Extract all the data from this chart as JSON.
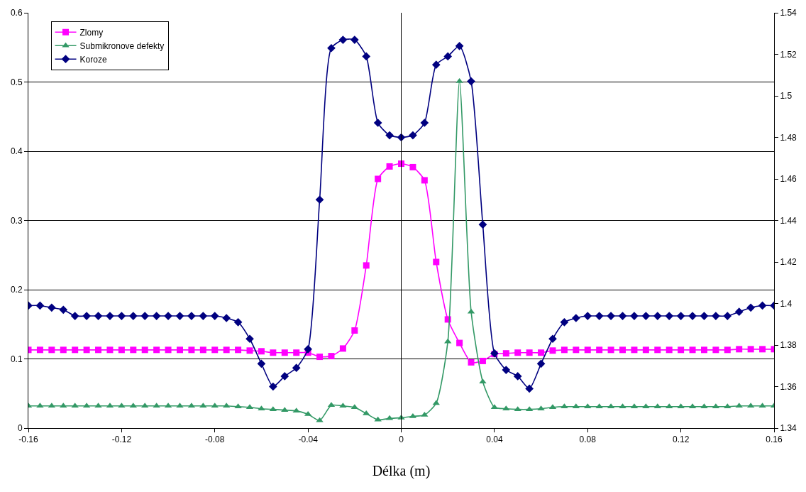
{
  "chart_data": {
    "type": "line",
    "xlabel": "Délka (m)",
    "x": [
      -0.16,
      -0.155,
      -0.15,
      -0.145,
      -0.14,
      -0.135,
      -0.13,
      -0.125,
      -0.12,
      -0.115,
      -0.11,
      -0.105,
      -0.1,
      -0.095,
      -0.09,
      -0.085,
      -0.08,
      -0.075,
      -0.07,
      -0.065,
      -0.06,
      -0.055,
      -0.05,
      -0.045,
      -0.04,
      -0.035,
      -0.03,
      -0.025,
      -0.02,
      -0.015,
      -0.01,
      -0.005,
      0,
      0.005,
      0.01,
      0.015,
      0.02,
      0.025,
      0.03,
      0.035,
      0.04,
      0.045,
      0.05,
      0.055,
      0.06,
      0.065,
      0.07,
      0.075,
      0.08,
      0.085,
      0.09,
      0.095,
      0.1,
      0.105,
      0.11,
      0.115,
      0.12,
      0.125,
      0.13,
      0.135,
      0.14,
      0.145,
      0.15,
      0.155,
      0.16
    ],
    "series": [
      {
        "name": "Zlomy",
        "color": "#ff00ff",
        "marker": "square",
        "values": [
          0.113,
          0.113,
          0.113,
          0.113,
          0.113,
          0.113,
          0.113,
          0.113,
          0.113,
          0.113,
          0.113,
          0.113,
          0.113,
          0.113,
          0.113,
          0.113,
          0.113,
          0.113,
          0.113,
          0.112,
          0.111,
          0.109,
          0.109,
          0.109,
          0.109,
          0.103,
          0.104,
          0.115,
          0.141,
          0.235,
          0.36,
          0.378,
          0.382,
          0.377,
          0.358,
          0.24,
          0.157,
          0.123,
          0.095,
          0.097,
          0.107,
          0.108,
          0.109,
          0.109,
          0.109,
          0.112,
          0.113,
          0.113,
          0.113,
          0.113,
          0.113,
          0.113,
          0.113,
          0.113,
          0.113,
          0.113,
          0.113,
          0.113,
          0.113,
          0.113,
          0.113,
          0.114,
          0.114,
          0.114,
          0.114
        ]
      },
      {
        "name": "Submikronove defekty",
        "color": "#339966",
        "marker": "triangle",
        "values": [
          0.032,
          0.032,
          0.032,
          0.032,
          0.032,
          0.032,
          0.032,
          0.032,
          0.032,
          0.032,
          0.032,
          0.032,
          0.032,
          0.032,
          0.032,
          0.032,
          0.032,
          0.032,
          0.031,
          0.03,
          0.028,
          0.027,
          0.026,
          0.025,
          0.02,
          0.011,
          0.033,
          0.032,
          0.03,
          0.021,
          0.012,
          0.014,
          0.015,
          0.017,
          0.019,
          0.036,
          0.125,
          0.501,
          0.168,
          0.067,
          0.03,
          0.028,
          0.027,
          0.027,
          0.028,
          0.03,
          0.031,
          0.031,
          0.031,
          0.031,
          0.031,
          0.031,
          0.031,
          0.031,
          0.031,
          0.031,
          0.031,
          0.031,
          0.031,
          0.031,
          0.031,
          0.032,
          0.032,
          0.032,
          0.032
        ]
      },
      {
        "name": "Koroze",
        "color": "#000080",
        "marker": "diamond",
        "axis": "y2",
        "values": [
          1.399,
          1.399,
          1.398,
          1.397,
          1.394,
          1.394,
          1.394,
          1.394,
          1.394,
          1.394,
          1.394,
          1.394,
          1.394,
          1.394,
          1.394,
          1.394,
          1.394,
          1.393,
          1.391,
          1.383,
          1.371,
          1.36,
          1.365,
          1.369,
          1.378,
          1.45,
          1.523,
          1.527,
          1.527,
          1.519,
          1.487,
          1.481,
          1.48,
          1.481,
          1.487,
          1.515,
          1.519,
          1.524,
          1.507,
          1.438,
          1.376,
          1.368,
          1.365,
          1.359,
          1.371,
          1.383,
          1.391,
          1.393,
          1.394,
          1.394,
          1.394,
          1.394,
          1.394,
          1.394,
          1.394,
          1.394,
          1.394,
          1.394,
          1.394,
          1.394,
          1.394,
          1.396,
          1.398,
          1.399,
          1.399
        ]
      }
    ],
    "xlim": [
      -0.16,
      0.16
    ],
    "xticks": [
      -0.16,
      -0.12,
      -0.08,
      -0.04,
      0,
      0.04,
      0.08,
      0.12,
      0.16
    ],
    "ylim": [
      0,
      0.6
    ],
    "yticks": [
      0,
      0.1,
      0.2,
      0.3,
      0.4,
      0.5,
      0.6
    ],
    "y2lim": [
      1.34,
      1.54
    ],
    "y2ticks": [
      1.34,
      1.36,
      1.38,
      1.4,
      1.42,
      1.44,
      1.46,
      1.48,
      1.5,
      1.52,
      1.54
    ],
    "ref_lines": [
      {
        "axis": "x",
        "value": 0,
        "color": "#000000"
      }
    ],
    "grid": "y",
    "legend": "top left",
    "line_style": "solid"
  }
}
